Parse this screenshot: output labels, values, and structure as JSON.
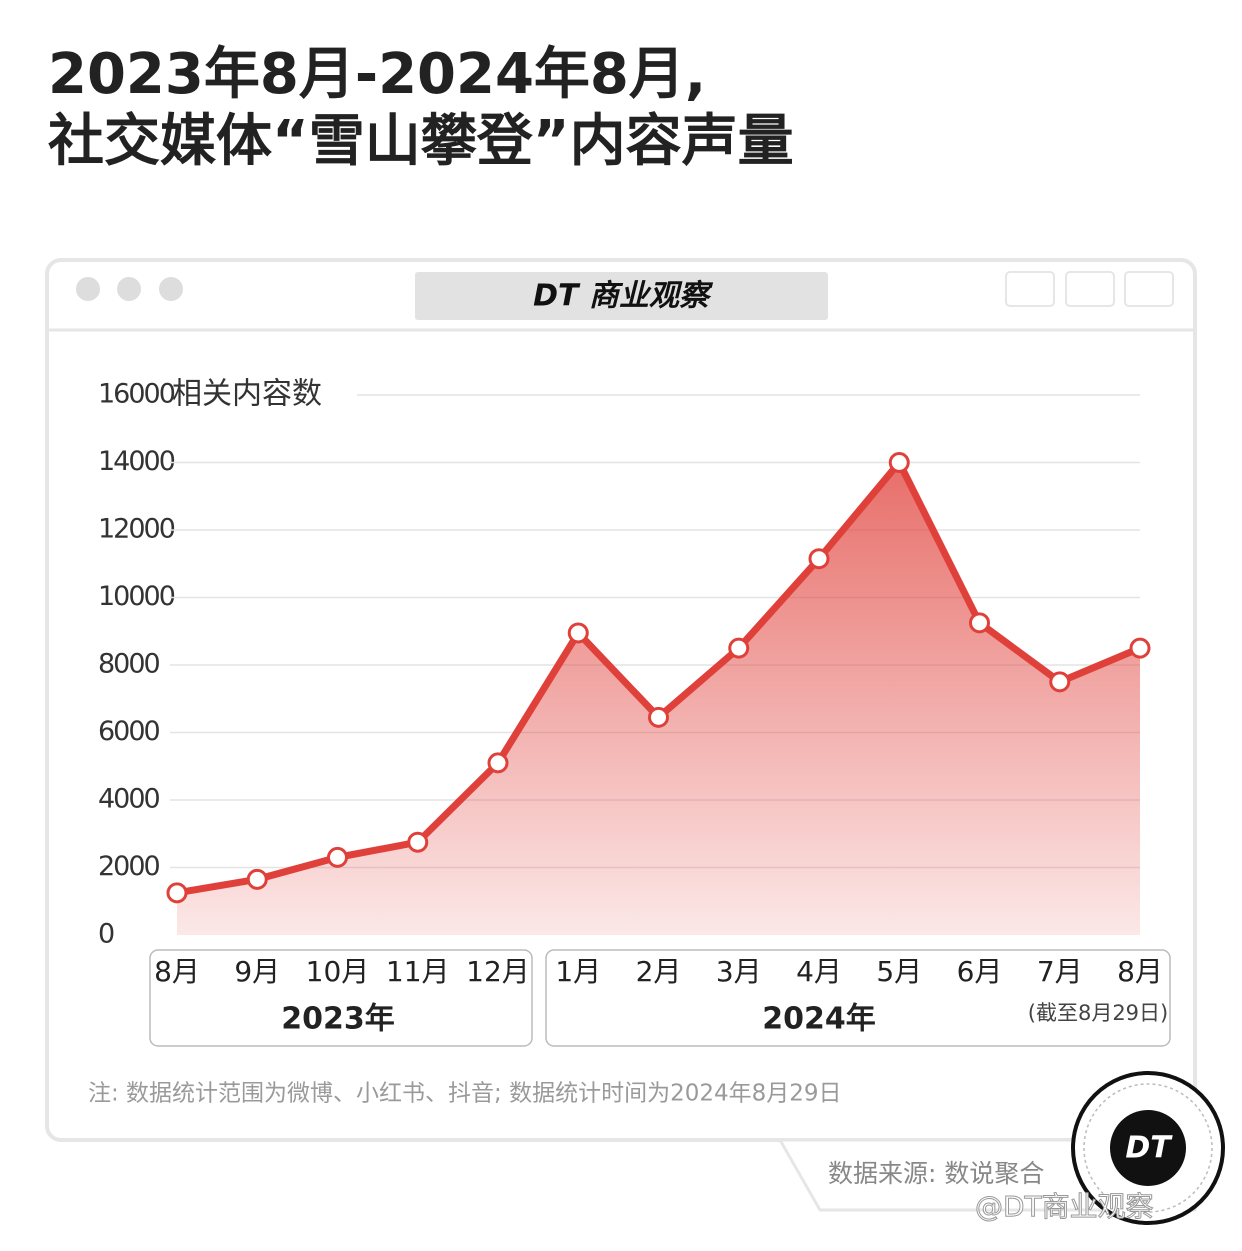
{
  "chart_data": {
    "type": "area",
    "title": [
      "2023年8月-2024年8月,",
      "社交媒体“雪山攀登”内容声量"
    ],
    "window_title": "DT 商业观察",
    "y_label": "相关内容数",
    "categories": [
      "8月",
      "9月",
      "10月",
      "11月",
      "12月",
      "1月",
      "2月",
      "3月",
      "4月",
      "5月",
      "6月",
      "7月",
      "8月"
    ],
    "x_groups": [
      "2023年",
      "2024年"
    ],
    "annotation": "(截至8月29日)",
    "series": [
      {
        "name": "相关内容数",
        "color": "#e0403a",
        "values": [
          1250,
          1650,
          2300,
          2750,
          5100,
          8950,
          6450,
          8500,
          11150,
          14000,
          9250,
          7500,
          8500
        ]
      }
    ],
    "ylim": [
      0,
      16000
    ],
    "yticks": [
      0,
      2000,
      4000,
      6000,
      8000,
      10000,
      12000,
      14000,
      16000
    ],
    "grid": true,
    "note": "注: 数据统计范围为微博、小红书、抖音; 数据统计时间为2024年8月29日",
    "source": "数据来源: 数说聚合",
    "logo": "DT",
    "watermark": "@DT商业观察"
  }
}
